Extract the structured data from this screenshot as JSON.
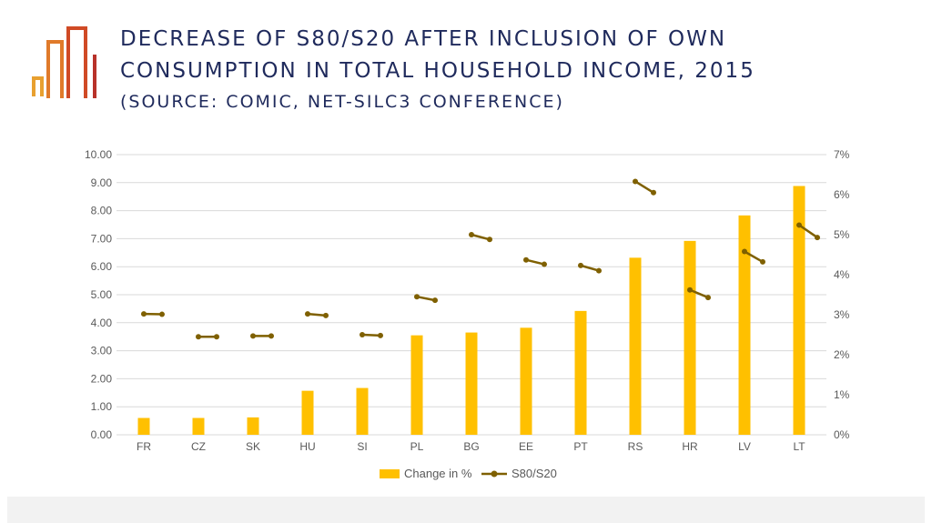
{
  "title": {
    "line1": "DECREASE OF S80/S20 AFTER INCLUSION OF OWN",
    "line2": "CONSUMPTION IN TOTAL HOUSEHOLD INCOME, 2015",
    "line3": "(SOURCE:   COMIC, NET-SILC3 CONFERENCE)"
  },
  "colors": {
    "title": "#1f2a5c",
    "bar": "#ffc000",
    "line": "#7f6000",
    "grid": "#d9d9d9",
    "axis_text": "#595959",
    "logo": [
      "#e8a030",
      "#e07a2a",
      "#d04a25",
      "#b8322a"
    ]
  },
  "chart_data": {
    "type": "bar",
    "categories": [
      "FR",
      "CZ",
      "SK",
      "HU",
      "SI",
      "PL",
      "BG",
      "EE",
      "PT",
      "RS",
      "HR",
      "LV",
      "LT"
    ],
    "series": [
      {
        "name": "Change in %",
        "type": "bar",
        "axis": "left",
        "values": [
          0.6,
          0.6,
          0.62,
          1.57,
          1.67,
          3.55,
          3.65,
          3.82,
          4.42,
          6.32,
          6.92,
          7.83,
          8.88
        ]
      },
      {
        "name": "S80/S20",
        "type": "line",
        "axis": "right",
        "note_visual": "each category shows a short two-point segment (before, after)",
        "values": [
          [
            3.02,
            3.01
          ],
          [
            2.45,
            2.45
          ],
          [
            2.47,
            2.47
          ],
          [
            3.02,
            2.98
          ],
          [
            2.5,
            2.48
          ],
          [
            3.45,
            3.36
          ],
          [
            5.0,
            4.88
          ],
          [
            4.37,
            4.26
          ],
          [
            4.23,
            4.1
          ],
          [
            6.33,
            6.05
          ],
          [
            3.62,
            3.43
          ],
          [
            4.58,
            4.32
          ],
          [
            5.24,
            4.93
          ]
        ]
      }
    ],
    "y_left": {
      "range": [
        0,
        10
      ],
      "ticks": [
        "0.00",
        "1.00",
        "2.00",
        "3.00",
        "4.00",
        "5.00",
        "6.00",
        "7.00",
        "8.00",
        "9.00",
        "10.00"
      ]
    },
    "y_right": {
      "range": [
        0,
        7
      ],
      "ticks": [
        "0%",
        "1%",
        "2%",
        "3%",
        "4%",
        "5%",
        "6%",
        "7%"
      ]
    },
    "grid": true,
    "legend": "bottom"
  }
}
